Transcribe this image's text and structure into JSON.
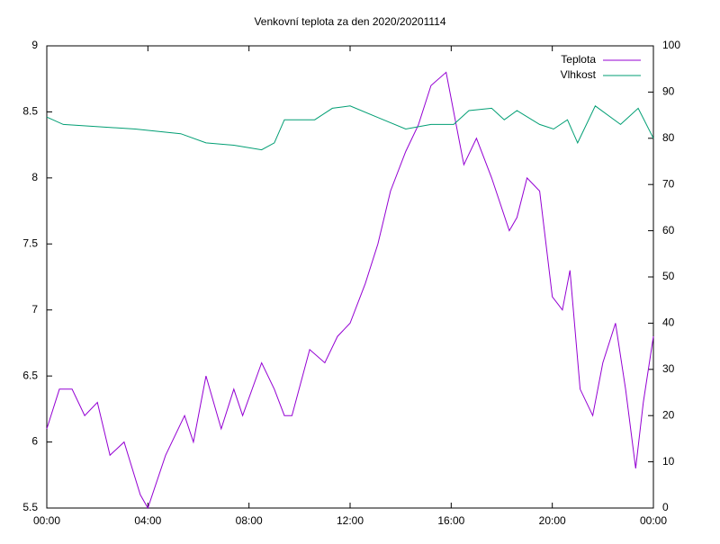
{
  "chart_data": {
    "type": "line",
    "title": "Venkovní teplota za den 2020/20201114",
    "xlim": [
      0,
      24
    ],
    "xticks": [
      {
        "value": 0,
        "label": "00:00"
      },
      {
        "value": 4,
        "label": "04:00"
      },
      {
        "value": 8,
        "label": "08:00"
      },
      {
        "value": 12,
        "label": "12:00"
      },
      {
        "value": 16,
        "label": "16:00"
      },
      {
        "value": 20,
        "label": "20:00"
      },
      {
        "value": 24,
        "label": "00:00"
      }
    ],
    "ylim": [
      5.5,
      9
    ],
    "yticks": [
      5.5,
      6,
      6.5,
      7,
      7.5,
      8,
      8.5,
      9
    ],
    "y2lim": [
      0,
      100
    ],
    "y2ticks": [
      0,
      10,
      20,
      30,
      40,
      50,
      60,
      70,
      80,
      90,
      100
    ],
    "legend": "top-right",
    "series": [
      {
        "name": "Teplota",
        "color": "#9400d3",
        "x": [
          0,
          0.5,
          1,
          1.5,
          2,
          2.5,
          3.06,
          3.7,
          4,
          4.7,
          5.45,
          5.8,
          6.3,
          6.9,
          7.4,
          7.75,
          8.5,
          9,
          9.4,
          9.7,
          10.4,
          11,
          11.5,
          12,
          12.6,
          13.1,
          13.6,
          14.2,
          14.7,
          15.2,
          15.8,
          16.1,
          16.5,
          17,
          17.6,
          18.3,
          18.6,
          19,
          19.5,
          20,
          20.4,
          20.7,
          21.1,
          21.6,
          22,
          22.5,
          22.9,
          23.3,
          23.6,
          24
        ],
        "values": [
          6.1,
          6.4,
          6.4,
          6.2,
          6.3,
          5.9,
          6.0,
          5.6,
          5.5,
          5.9,
          6.2,
          6.0,
          6.5,
          6.1,
          6.4,
          6.2,
          6.6,
          6.4,
          6.2,
          6.2,
          6.7,
          6.6,
          6.8,
          6.9,
          7.2,
          7.5,
          7.9,
          8.2,
          8.4,
          8.7,
          8.8,
          8.5,
          8.1,
          8.3,
          8.0,
          7.6,
          7.7,
          8.0,
          7.9,
          7.1,
          7.0,
          7.3,
          6.4,
          6.2,
          6.6,
          6.9,
          6.4,
          5.8,
          6.3,
          6.8
        ]
      },
      {
        "name": "Vlhkost",
        "color": "#009e73",
        "axis": "y2",
        "x": [
          0,
          0.65,
          3.5,
          5.3,
          6.3,
          7.4,
          8.5,
          9.0,
          9.4,
          10.6,
          11.3,
          12,
          13.1,
          14.2,
          15.2,
          16.1,
          16.7,
          17.6,
          18.1,
          18.6,
          19.5,
          20.05,
          20.6,
          21.0,
          21.7,
          22.7,
          23.4,
          24
        ],
        "values": [
          84.6,
          83,
          82,
          81,
          79,
          78.5,
          77.5,
          79,
          84,
          84,
          86.5,
          87,
          84.5,
          82,
          83,
          83,
          86,
          86.5,
          84,
          86,
          83,
          82,
          84,
          79,
          87,
          83,
          86.5,
          80
        ]
      }
    ]
  }
}
